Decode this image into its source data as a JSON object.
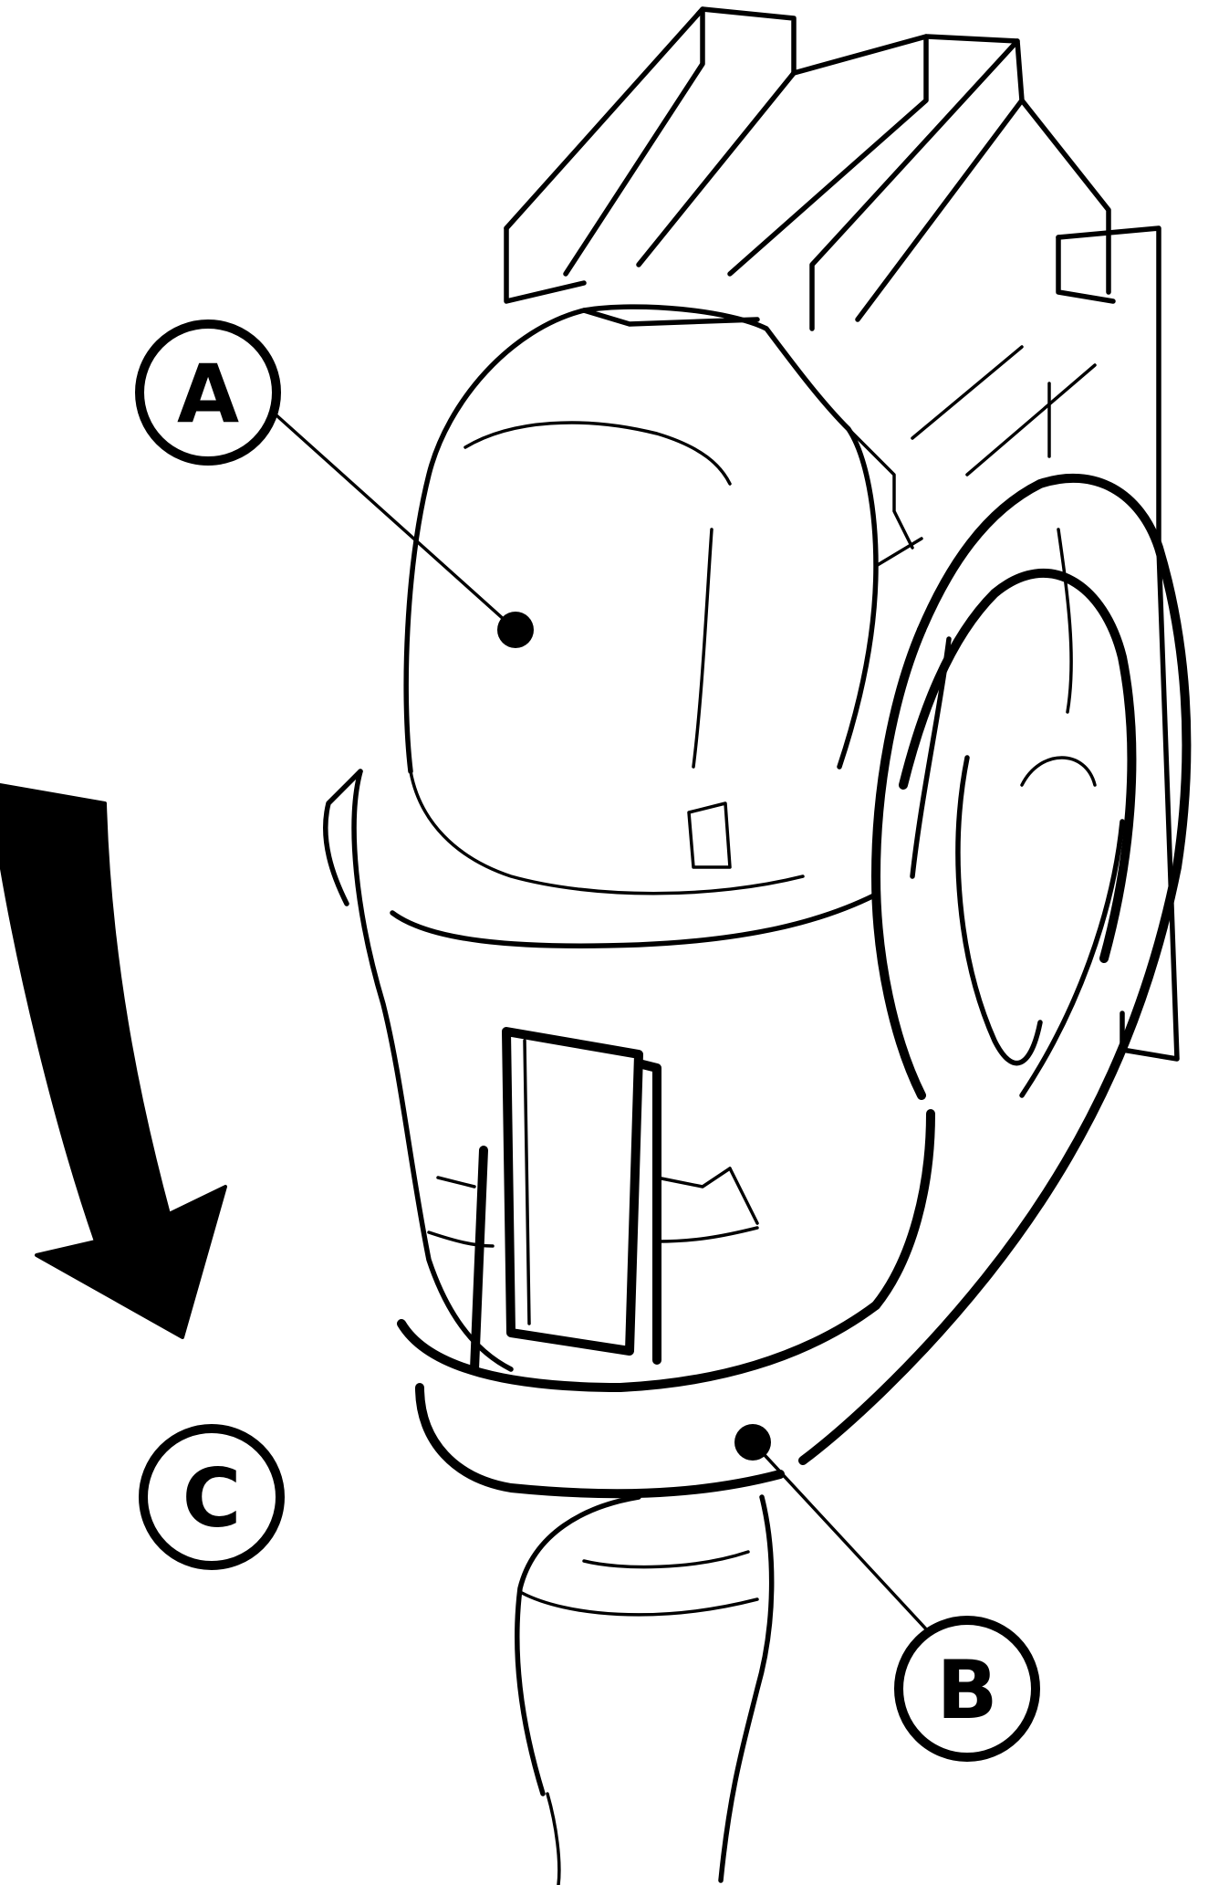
{
  "callouts": {
    "a": {
      "letter": "A"
    },
    "b": {
      "letter": "B"
    },
    "c": {
      "letter": "C"
    }
  }
}
